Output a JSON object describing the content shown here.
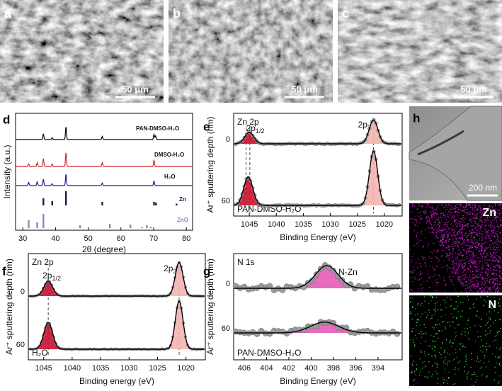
{
  "panels": {
    "a": {
      "label": "a",
      "scale_bar": "50 μm"
    },
    "b": {
      "label": "b",
      "scale_bar": "50 μm"
    },
    "c": {
      "label": "c",
      "scale_bar": "50 μm"
    },
    "d": {
      "label": "d",
      "xlabel": "2θ (degree)",
      "ylabel": "Intensity (a.u.)",
      "xlim": [
        27.8,
        81.9
      ],
      "xticks": [
        30,
        40,
        50,
        60,
        70,
        80
      ],
      "series": [
        {
          "name": "PAN-DMSO-H₂O",
          "color": "#000000",
          "peaks": [
            [
              36.3,
              0.45
            ],
            [
              39.0,
              0.15
            ],
            [
              43.2,
              1.0
            ],
            [
              54.3,
              0.25
            ],
            [
              70.1,
              0.4
            ],
            [
              70.6,
              0.3
            ]
          ]
        },
        {
          "name": "DMSO-H₂O",
          "color": "#d62728",
          "peaks": [
            [
              31.8,
              0.2
            ],
            [
              34.4,
              0.3
            ],
            [
              36.3,
              0.6
            ],
            [
              39.0,
              0.2
            ],
            [
              43.2,
              1.1
            ],
            [
              54.3,
              0.3
            ],
            [
              70.1,
              0.5
            ]
          ]
        },
        {
          "name": "H₂O",
          "color": "#1f1fa0",
          "peaks": [
            [
              31.8,
              0.25
            ],
            [
              34.4,
              0.3
            ],
            [
              36.3,
              0.5
            ],
            [
              39.0,
              0.15
            ],
            [
              43.2,
              0.9
            ],
            [
              54.3,
              0.2
            ],
            [
              70.1,
              0.35
            ]
          ]
        }
      ],
      "references": [
        {
          "name": "Zn",
          "color": "#1a1a4e",
          "sticks": [
            [
              36.3,
              0.5
            ],
            [
              39.0,
              0.3
            ],
            [
              43.2,
              1.0
            ],
            [
              54.3,
              0.25
            ],
            [
              70.1,
              0.25
            ],
            [
              70.7,
              0.2
            ],
            [
              77.0,
              0.12
            ]
          ]
        },
        {
          "name": "ZnO",
          "color": "#8a86c0",
          "sticks": [
            [
              31.8,
              0.55
            ],
            [
              34.4,
              0.4
            ],
            [
              36.3,
              1.0
            ],
            [
              47.5,
              0.2
            ],
            [
              56.6,
              0.3
            ],
            [
              62.9,
              0.25
            ],
            [
              66.4,
              0.08
            ],
            [
              67.9,
              0.2
            ],
            [
              69.1,
              0.1
            ]
          ]
        }
      ]
    },
    "e": {
      "label": "e",
      "title": "Zn 2p",
      "xlabel": "Binding Energy (eV)",
      "ylabel": "Ar⁺ sputtering depth (nm)",
      "sample": "PAN-DMSO-H₂O",
      "sample_color": "#e0168c",
      "xlim": [
        1047.9,
        1016.7
      ],
      "xticks": [
        1045,
        1040,
        1035,
        1030,
        1025,
        1020
      ],
      "yticks": [
        0,
        60
      ],
      "peak_colors": [
        "#c8102e",
        "#f4b4ae"
      ],
      "peak_labels": [
        {
          "text": [
            "2p",
            "1/2"
          ],
          "position": 1045.2
        },
        {
          "text": [
            "2p",
            "3/2"
          ],
          "position": 1022.0
        }
      ],
      "reference_lines": [
        1045.6,
        1044.9,
        1022.0
      ],
      "spectra": [
        {
          "peaks": [
            [
              1045.0,
              0.2,
              2.0
            ],
            [
              1022.0,
              0.42,
              1.9
            ]
          ]
        },
        {
          "peaks": [
            [
              1045.2,
              0.5,
              2.0
            ],
            [
              1022.0,
              0.96,
              1.8
            ]
          ]
        }
      ]
    },
    "f": {
      "label": "f",
      "title": "Zn 2p",
      "xlabel": "Binding energy (eV)",
      "ylabel": "Ar⁺ sputtering depth (nm)",
      "sample": "H₂O",
      "sample_color": "#1f2a80",
      "xlim": [
        1047.7,
        1016.6
      ],
      "xticks": [
        1045,
        1040,
        1035,
        1030,
        1025,
        1020
      ],
      "yticks": [
        0,
        60
      ],
      "peak_colors": [
        "#c8102e",
        "#f4b4ae"
      ],
      "peak_labels": [
        {
          "text": [
            "2p",
            "1/2"
          ],
          "position": 1044.2
        },
        {
          "text": [
            "2p",
            "3/2"
          ],
          "position": 1021.2
        }
      ],
      "reference_lines": [
        1044.2,
        1021.2
      ],
      "spectra": [
        {
          "peaks": [
            [
              1044.2,
              0.3,
              1.8
            ],
            [
              1021.2,
              0.68,
              1.6
            ]
          ]
        },
        {
          "peaks": [
            [
              1044.2,
              0.54,
              1.8
            ],
            [
              1021.2,
              0.97,
              1.6
            ]
          ]
        }
      ]
    },
    "g": {
      "label": "g",
      "title": "N 1s",
      "xlabel": "Binding Energy (eV)",
      "ylabel": "Ar⁺ sputtering depth (nm)",
      "sample": "PAN-DMSO-H₂O",
      "sample_color": "#e0168c",
      "xlim": [
        406.95,
        391.84
      ],
      "xticks": [
        406,
        404,
        402,
        400,
        398,
        396,
        394
      ],
      "yticks": [
        0,
        60
      ],
      "peak_colors": [
        "#e45bb8"
      ],
      "peak_labels": [
        {
          "text": [
            "N-Zn"
          ],
          "position": 397.8
        }
      ],
      "reference_lines": [],
      "spectra": [
        {
          "peaks": [
            [
              398.6,
              0.8,
              2.4
            ]
          ]
        },
        {
          "peaks": [
            [
              398.8,
              0.38,
              3.0
            ]
          ]
        }
      ]
    },
    "h": {
      "label": "h",
      "scale_bar": "200 nm",
      "maps": [
        "Zn",
        "N"
      ]
    }
  }
}
